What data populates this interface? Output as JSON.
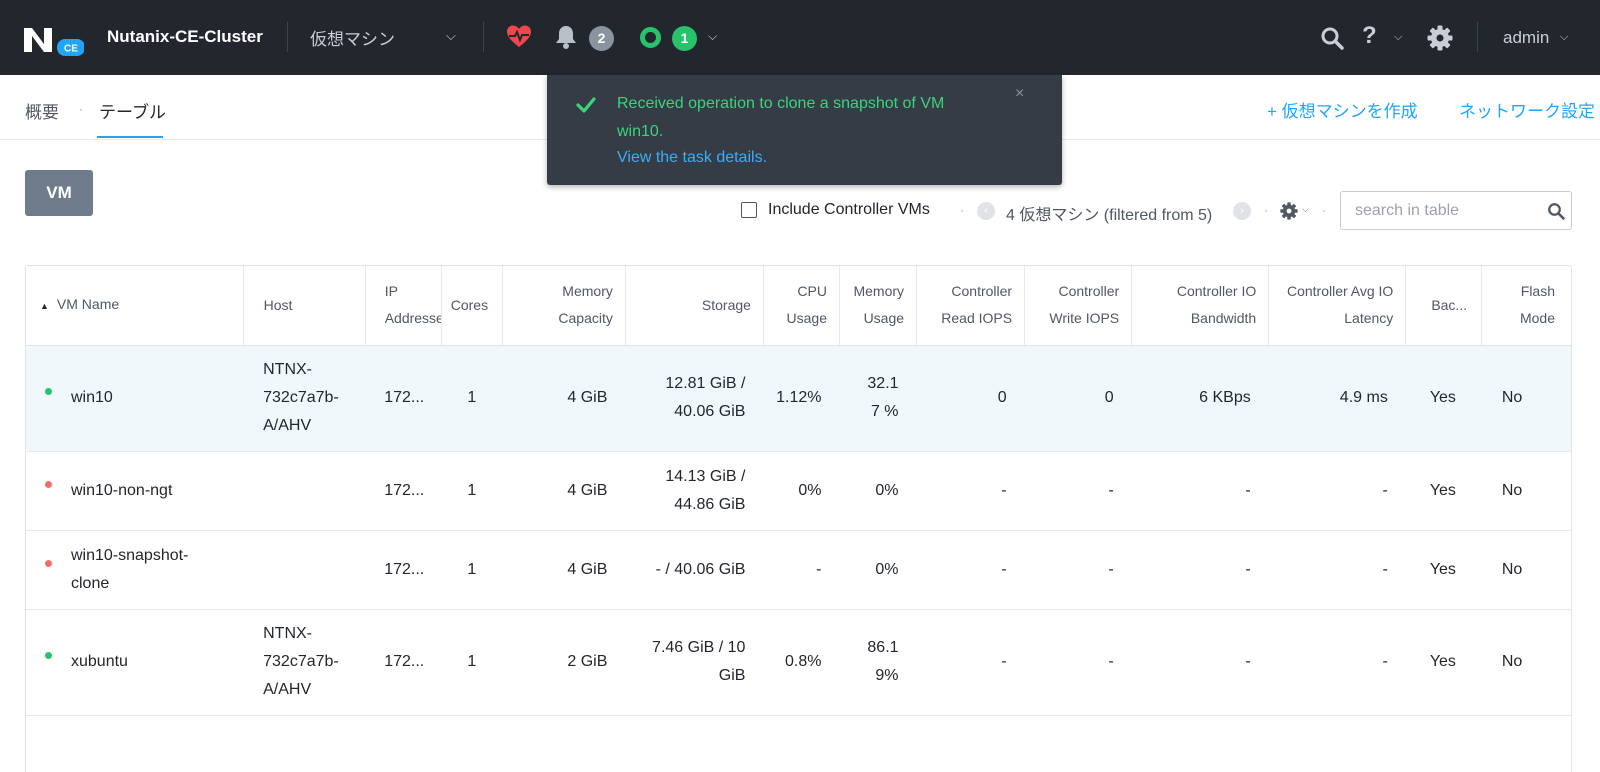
{
  "header": {
    "cluster_name": "Nutanix-CE-Cluster",
    "entity_select": "仮想マシン",
    "alert_count": "2",
    "task_count": "1",
    "user": "admin",
    "help_glyph": "?",
    "logo_badge": "CE",
    "icons": [
      "nutanix-logo",
      "chevron-down-icon",
      "health-heart-icon",
      "bell-icon",
      "task-ring-icon",
      "search-icon",
      "help-icon",
      "gear-icon"
    ],
    "colors": {
      "bar": "#22272e",
      "health": "#f0474e",
      "task": "#27c26b",
      "alert_badge": "#8a93a0"
    }
  },
  "subnav": {
    "tabs": [
      {
        "label": "概要",
        "active": false
      },
      {
        "label": "テーブル",
        "active": true
      }
    ],
    "actions": {
      "create_vm": "+ 仮想マシンを作成",
      "network_config": "ネットワーク設定"
    }
  },
  "toast": {
    "message": "Received operation to clone a snapshot of VM win10.",
    "link": "View the task details.",
    "close": "×"
  },
  "view_button": "VM",
  "toolbar": {
    "include_cvm_label": "Include Controller VMs",
    "include_cvm_checked": false,
    "pager_text": "4 仮想マシン (filtered from 5)",
    "search_placeholder": "search in table"
  },
  "table": {
    "columns": [
      {
        "line1": "VM Name",
        "line2": ""
      },
      {
        "line1": "Host",
        "line2": ""
      },
      {
        "line1": "IP",
        "line2": "Addresses"
      },
      {
        "line1": "Cores",
        "line2": ""
      },
      {
        "line1": "Memory",
        "line2": "Capacity"
      },
      {
        "line1": "Storage",
        "line2": ""
      },
      {
        "line1": "CPU",
        "line2": "Usage"
      },
      {
        "line1": "Memory",
        "line2": "Usage"
      },
      {
        "line1": "Controller",
        "line2": "Read IOPS"
      },
      {
        "line1": "Controller",
        "line2": "Write IOPS"
      },
      {
        "line1": "Controller IO",
        "line2": "Bandwidth"
      },
      {
        "line1": "Controller Avg IO",
        "line2": "Latency"
      },
      {
        "line1": "Bac...",
        "line2": ""
      },
      {
        "line1": "Flash",
        "line2": "Mode"
      }
    ],
    "rows": [
      {
        "status": "on",
        "name": "win10",
        "host": "NTNX-732c7a7b-A/AHV",
        "ip": "172...",
        "cores": "1",
        "memory": "4 GiB",
        "storage": "12.81 GiB / 40.06 GiB",
        "cpu": "1.12%",
        "mem_usage": "32.17 %",
        "read_iops": "0",
        "write_iops": "0",
        "io_bw": "6 KBps",
        "io_latency": "4.9 ms",
        "backup": "Yes",
        "flash": "No"
      },
      {
        "status": "off",
        "name": "win10-non-ngt",
        "host": "",
        "ip": "172...",
        "cores": "1",
        "memory": "4 GiB",
        "storage": "14.13 GiB / 44.86 GiB",
        "cpu": "0%",
        "mem_usage": "0%",
        "read_iops": "-",
        "write_iops": "-",
        "io_bw": "-",
        "io_latency": "-",
        "backup": "Yes",
        "flash": "No"
      },
      {
        "status": "off",
        "name": "win10-snapshot-clone",
        "host": "",
        "ip": "172...",
        "cores": "1",
        "memory": "4 GiB",
        "storage": "- / 40.06 GiB",
        "cpu": "-",
        "mem_usage": "0%",
        "read_iops": "-",
        "write_iops": "-",
        "io_bw": "-",
        "io_latency": "-",
        "backup": "Yes",
        "flash": "No"
      },
      {
        "status": "on",
        "name": "xubuntu",
        "host": "NTNX-732c7a7b-A/AHV",
        "ip": "172...",
        "cores": "1",
        "memory": "2 GiB",
        "storage": "7.46 GiB / 10 GiB",
        "cpu": "0.8%",
        "mem_usage": "86.19%",
        "read_iops": "-",
        "write_iops": "-",
        "io_bw": "-",
        "io_latency": "-",
        "backup": "Yes",
        "flash": "No"
      }
    ],
    "status_colors": {
      "on": "#27c26b",
      "off": "#f36c6c"
    }
  }
}
